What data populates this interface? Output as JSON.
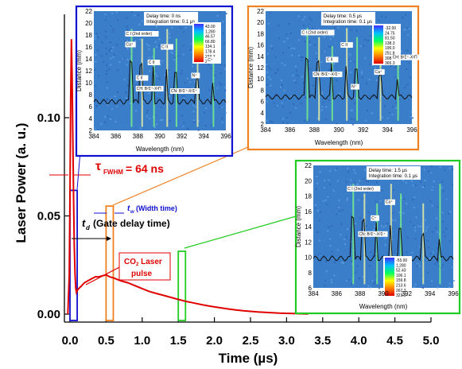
{
  "chart_data": {
    "type": "line",
    "xlabel": "Time (µs)",
    "ylabel": "Laser Power (a. u.)",
    "xlim": [
      -0.05,
      5.0
    ],
    "ylim": [
      -0.005,
      0.145
    ],
    "xticks": [
      "0.0",
      "0.5",
      "1.0",
      "1.5",
      "2.0",
      "2.5",
      "3.0",
      "3.5",
      "4.0",
      "4.5",
      "5.0"
    ],
    "xtick_values": [
      0,
      0.5,
      1,
      1.5,
      2,
      2.5,
      3,
      3.5,
      4,
      4.5,
      5
    ],
    "yticks": [
      "0.00",
      "0.05",
      "0.10"
    ],
    "ytick_values": [
      0,
      0.05,
      0.1
    ],
    "series": [
      {
        "color": "#e00000",
        "x": [
          -0.03,
          -0.01,
          0.0,
          0.01,
          0.02,
          0.03,
          0.04,
          0.05,
          0.06,
          0.07,
          0.08,
          0.09,
          0.1,
          0.12,
          0.15,
          0.2,
          0.25,
          0.3,
          0.35,
          0.4,
          0.45,
          0.5,
          0.55,
          0.6,
          0.7,
          0.8,
          0.9,
          1.0,
          1.1,
          1.2,
          1.3,
          1.4,
          1.5,
          1.6,
          1.7,
          1.8,
          1.9,
          2.0,
          2.1,
          2.2,
          2.3,
          2.4,
          2.5,
          2.6,
          2.7,
          2.8,
          2.9,
          3.0,
          3.1,
          3.2,
          3.3
        ],
        "y": [
          0.0,
          0.02,
          0.06,
          0.11,
          0.14,
          0.12,
          0.09,
          0.06,
          0.035,
          0.02,
          0.013,
          0.011,
          0.012,
          0.013,
          0.014,
          0.016,
          0.017,
          0.018,
          0.019,
          0.019,
          0.0195,
          0.02,
          0.019,
          0.0185,
          0.017,
          0.016,
          0.0145,
          0.013,
          0.0115,
          0.0105,
          0.0095,
          0.0085,
          0.0075,
          0.0065,
          0.0058,
          0.005,
          0.0043,
          0.0037,
          0.0031,
          0.0026,
          0.0021,
          0.0017,
          0.0014,
          0.0011,
          0.0009,
          0.0007,
          0.0005,
          0.0004,
          0.0003,
          0.0002,
          0.0001
        ]
      }
    ],
    "gates": [
      {
        "x": 0.0,
        "width": 0.1,
        "height": 0.063,
        "color": "#1010d0"
      },
      {
        "x": 0.5,
        "width": 0.1,
        "height": 0.055,
        "color": "#f08020"
      },
      {
        "x": 1.5,
        "width": 0.1,
        "height": 0.032,
        "color": "#20cc20"
      }
    ],
    "annotations": {
      "tau": "τ",
      "fwhm_sub": "FWHM",
      "fwhm_value": "= 64 ns",
      "td_main": "t",
      "td_sub": "d",
      "td_text": "(Gate delay time)",
      "tw_main": "t",
      "tw_sub": "w",
      "tw_text": "(Width time)",
      "co2_line1_a": "CO",
      "co2_line1_sub": "2",
      "co2_line1_b": " Laser",
      "co2_line2": "pulse"
    },
    "insets": [
      {
        "border": "#1010d0",
        "delay": "Delay time: 0 ns",
        "integration": "Integration time: 0.1 µs",
        "xlabel": "Wavelength (nm)",
        "ylabel": "Distance (mm)",
        "xticks": [
          "384",
          "386",
          "388",
          "390",
          "392",
          "394",
          "396"
        ],
        "yticks": [
          "2",
          "4",
          "6",
          "8",
          "10",
          "12",
          "14",
          "16",
          "18",
          "20",
          "22"
        ],
        "colorbar": [
          "43.00",
          "1,280",
          "46.57",
          "66.80",
          "134.1",
          "178.4",
          "222.7",
          "267.0"
        ],
        "peaks": [
          "C I (2nd order)",
          "C II",
          "C II",
          "C II",
          "CN: B²Σ⁺-X²Σ⁺",
          "N⁺",
          "C⁺",
          "Ca⁺",
          "CH: B²Σ⁺-X²Π"
        ]
      },
      {
        "border": "#f08020",
        "delay": "Delay time: 0.5 µs",
        "integration": "Integration time: 0.1 µs",
        "xlabel": "Wavelength (nm)",
        "ylabel": "Distance (mm)",
        "xticks": [
          "384",
          "386",
          "388",
          "390",
          "392",
          "394",
          "396"
        ],
        "yticks": [
          "2",
          "4",
          "6",
          "8",
          "10",
          "12",
          "14",
          "16",
          "18",
          "20",
          "22"
        ],
        "colorbar": [
          "-32.00",
          "24.75",
          "81.50",
          "138.3",
          "195.0",
          "251.8",
          "308.5",
          "365.3"
        ],
        "peaks": [
          "C I (2nd order)",
          "CN: B²Σ⁺-X²Σ⁺",
          "C II",
          "C II",
          "N⁺",
          "Ca⁺",
          "CH: B²Σ⁺-X²Π"
        ]
      },
      {
        "border": "#20cc20",
        "delay": "Delay time: 1.5 µs",
        "integration": "Integration time: 0.1 µs",
        "xlabel": "Wavelength (nm)",
        "ylabel": "Distance (mm)",
        "xticks": [
          "384",
          "386",
          "388",
          "390",
          "392",
          "394",
          "396"
        ],
        "yticks": [
          "6",
          "8",
          "10",
          "12",
          "14",
          "16",
          "18",
          "20",
          "22"
        ],
        "colorbar": [
          "-55.00",
          "1,280",
          "52.43",
          "106.1",
          "159.8",
          "213.6",
          "267.3",
          "321.0"
        ],
        "peaks": [
          "C I (2nd order)",
          "CN: B²Σ⁺-X²Σ⁺",
          "C⁺",
          "Ca⁺"
        ]
      }
    ]
  },
  "colors": {
    "pulse": "#e00000",
    "blue": "#1010d0",
    "orange": "#f08020",
    "green": "#20cc20"
  }
}
